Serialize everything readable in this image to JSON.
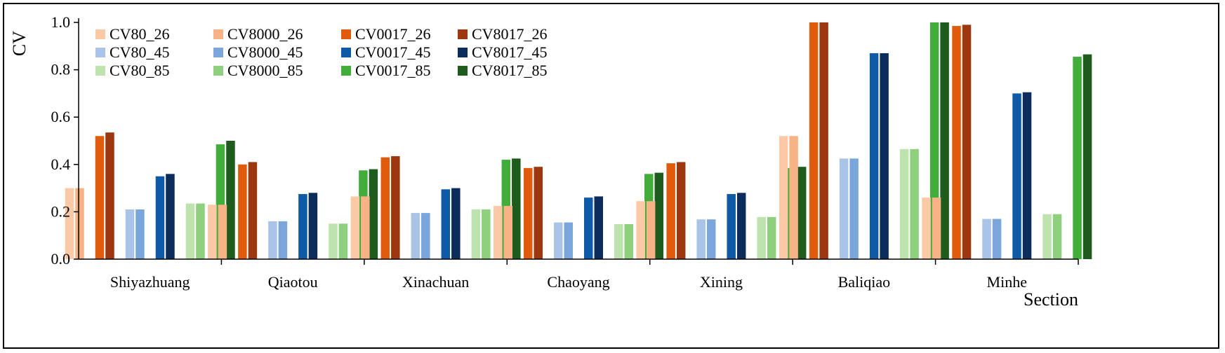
{
  "chart_data": {
    "type": "bar",
    "ylabel": "CV",
    "xlabel": "Section",
    "ylim": [
      0,
      1.0
    ],
    "yticks": [
      "0.0",
      "0.2",
      "0.4",
      "0.6",
      "0.8",
      "1.0"
    ],
    "grid": false,
    "legend_position": "top-left",
    "categories": [
      "Shiyazhuang",
      "Qiaotou",
      "Xinachuan",
      "Chaoyang",
      "Xining",
      "Baliqiao",
      "Minhe"
    ],
    "series": [
      {
        "name": "CV80_26",
        "color": "#fbc9a6",
        "values": [
          0.3,
          0.23,
          0.265,
          0.225,
          0.245,
          0.52,
          0.26
        ]
      },
      {
        "name": "CV8000_26",
        "color": "#f7b286",
        "values": [
          0.3,
          0.23,
          0.265,
          0.225,
          0.245,
          0.52,
          0.26
        ]
      },
      {
        "name": "CV0017_26",
        "color": "#e05c0c",
        "values": [
          0.52,
          0.4,
          0.43,
          0.385,
          0.405,
          1.0,
          0.985
        ]
      },
      {
        "name": "CV8017_26",
        "color": "#9c3710",
        "values": [
          0.535,
          0.41,
          0.435,
          0.39,
          0.41,
          1.0,
          0.99
        ]
      },
      {
        "name": "CV80_45",
        "color": "#a9c4e6",
        "values": [
          0.21,
          0.16,
          0.195,
          0.155,
          0.168,
          0.425,
          0.17
        ]
      },
      {
        "name": "CV8000_45",
        "color": "#7aa6db",
        "values": [
          0.21,
          0.16,
          0.195,
          0.155,
          0.168,
          0.425,
          0.17
        ]
      },
      {
        "name": "CV0017_45",
        "color": "#0f5aa6",
        "values": [
          0.35,
          0.275,
          0.295,
          0.26,
          0.275,
          0.87,
          0.7
        ]
      },
      {
        "name": "CV8017_45",
        "color": "#0c2d5c",
        "values": [
          0.36,
          0.28,
          0.3,
          0.265,
          0.28,
          0.87,
          0.705
        ]
      },
      {
        "name": "CV80_85",
        "color": "#bfe3ae",
        "values": [
          0.235,
          0.15,
          0.21,
          0.148,
          0.178,
          0.465,
          0.19
        ]
      },
      {
        "name": "CV8000_85",
        "color": "#8fd07e",
        "values": [
          0.235,
          0.15,
          0.21,
          0.148,
          0.178,
          0.465,
          0.19
        ]
      },
      {
        "name": "CV0017_85",
        "color": "#43ad3c",
        "values": [
          0.485,
          0.375,
          0.42,
          0.36,
          0.385,
          1.0,
          0.855
        ]
      },
      {
        "name": "CV8017_85",
        "color": "#1e5c1e",
        "values": [
          0.5,
          0.38,
          0.425,
          0.365,
          0.39,
          1.0,
          0.865
        ]
      }
    ]
  }
}
